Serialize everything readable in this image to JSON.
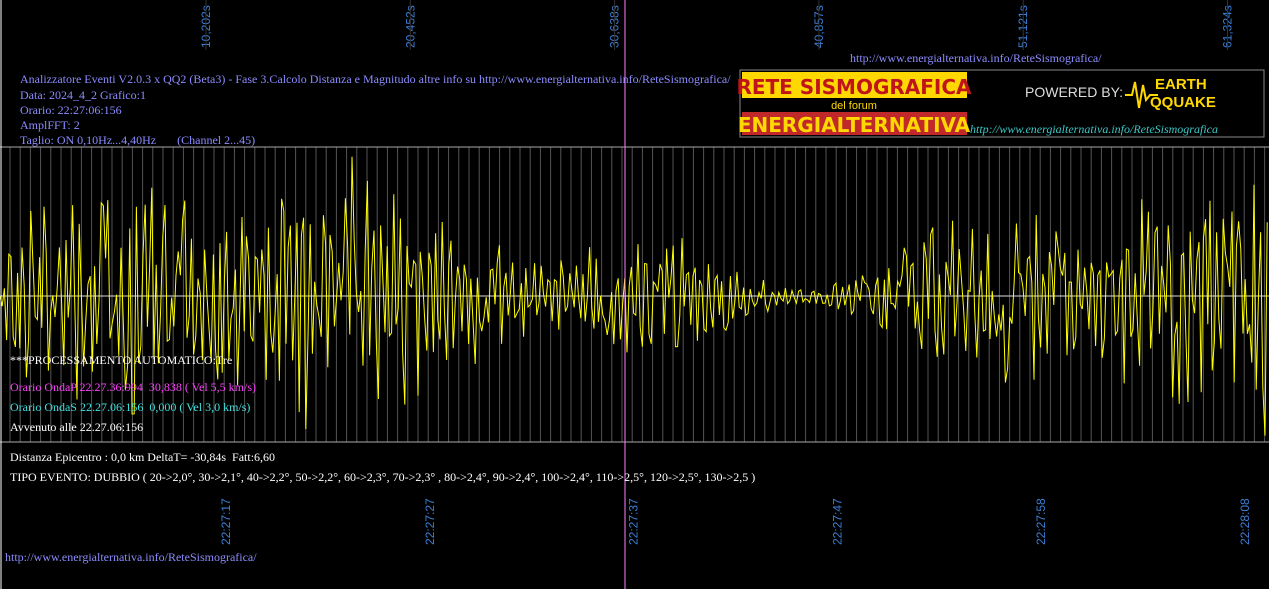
{
  "top_times": [
    "10,202s",
    "20,452s",
    "30,638s",
    "40,857s",
    "51,121s",
    "61,324s"
  ],
  "top_url": "http://www.energialternativa.info/ReteSismografica/",
  "info": [
    "Analizzatore Eventi V2.0.3 x QQ2 (Beta3) - Fase 3.Calcolo Distanza e Magnitudo altre info su http://www.energialternativa.info/ReteSismografica/",
    "Data: 2024_4_2 Grafico:1",
    "Orario: 22:27:06:156",
    "AmplFFT: 2",
    "Taglio: ON 0,10Hz...4,40Hz       (Channel 2...45)"
  ],
  "logo": {
    "line1": "RETE SISMOGRAFICA",
    "line2": "del forum",
    "line3": "ENERGIALTERNATIVA",
    "powered": "POWERED BY:",
    "earth": "EARTH",
    "quake": "QQUAKE",
    "url": "http://www.energialternativa.info/ReteSismografica"
  },
  "processing": {
    "title": "***PROCESSAMENTO AUTOMATICO:Tre",
    "p_wave": "Orario OndaP 22.27.36:994  30,838 ( Vel 5,5 km/s)",
    "s_wave": "Orario OndaS 22.27.06:156  0,000 ( Vel 3,0 km/s)",
    "occurred": "Avvenuto alle 22.27.06:156"
  },
  "distance": "Distanza Epicentro : 0,0 km DeltaT= -30,84s  Fatt:6,60",
  "event_type": "TIPO EVENTO: DUBBIO ( 20->2,0°, 30->2,1°, 40->2,2°, 50->2,2°, 60->2,3°, 70->2,3° , 80->2,4°, 90->2,4°, 100->2,4°, 110->2,5°, 120->2,5°, 130->2,5 )",
  "bottom_times": [
    "22:27:17",
    "22:27:27",
    "22:27:37",
    "22:27:47",
    "22:27:58",
    "22:28:08"
  ],
  "bottom_url": "http://www.energialternativa.info/ReteSismografica/"
}
